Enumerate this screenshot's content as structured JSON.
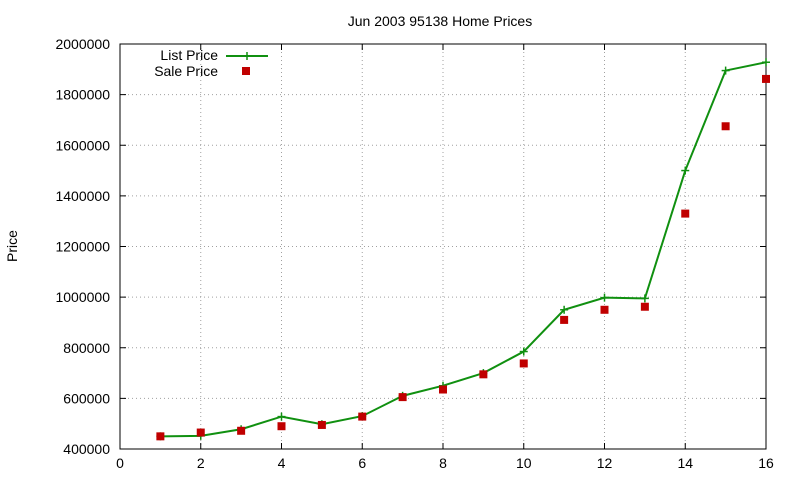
{
  "chart_data": {
    "type": "line",
    "title": "Jun 2003 95138 Home Prices",
    "xlabel": "",
    "ylabel": "Price",
    "xlim": [
      0,
      16
    ],
    "ylim": [
      400000,
      2000000
    ],
    "xticks": [
      0,
      2,
      4,
      6,
      8,
      10,
      12,
      14,
      16
    ],
    "yticks": [
      400000,
      600000,
      800000,
      1000000,
      1200000,
      1400000,
      1600000,
      1800000,
      2000000
    ],
    "grid": true,
    "legend_position": "top-left",
    "x": [
      1,
      2,
      3,
      4,
      5,
      6,
      7,
      8,
      9,
      10,
      11,
      12,
      13,
      14,
      15,
      16
    ],
    "series": [
      {
        "name": "List Price",
        "style": "line-with-plus-markers",
        "color": "#109010",
        "values": [
          450000,
          452000,
          478000,
          528000,
          498000,
          530000,
          610000,
          650000,
          700000,
          785000,
          950000,
          998000,
          995000,
          1500000,
          1895000,
          1928000
        ]
      },
      {
        "name": "Sale Price",
        "style": "square-markers",
        "color": "#c00000",
        "values": [
          450000,
          465000,
          472000,
          490000,
          495000,
          528000,
          605000,
          635000,
          695000,
          738000,
          910000,
          950000,
          962000,
          1330000,
          1675000,
          1862000
        ]
      }
    ]
  }
}
